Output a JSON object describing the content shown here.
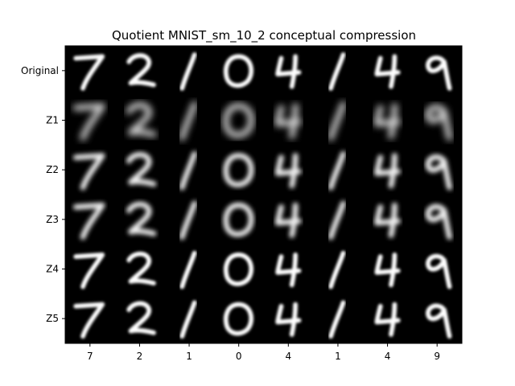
{
  "figure": {
    "title": "Quotient MNIST_sm_10_2 conceptual compression",
    "row_labels": [
      "Original",
      "Z1",
      "Z2",
      "Z3",
      "Z4",
      "Z5"
    ],
    "column_labels": [
      "7",
      "2",
      "1",
      "0",
      "4",
      "1",
      "4",
      "9"
    ],
    "background_color": "#000000",
    "digit_color": "#ffffff"
  }
}
